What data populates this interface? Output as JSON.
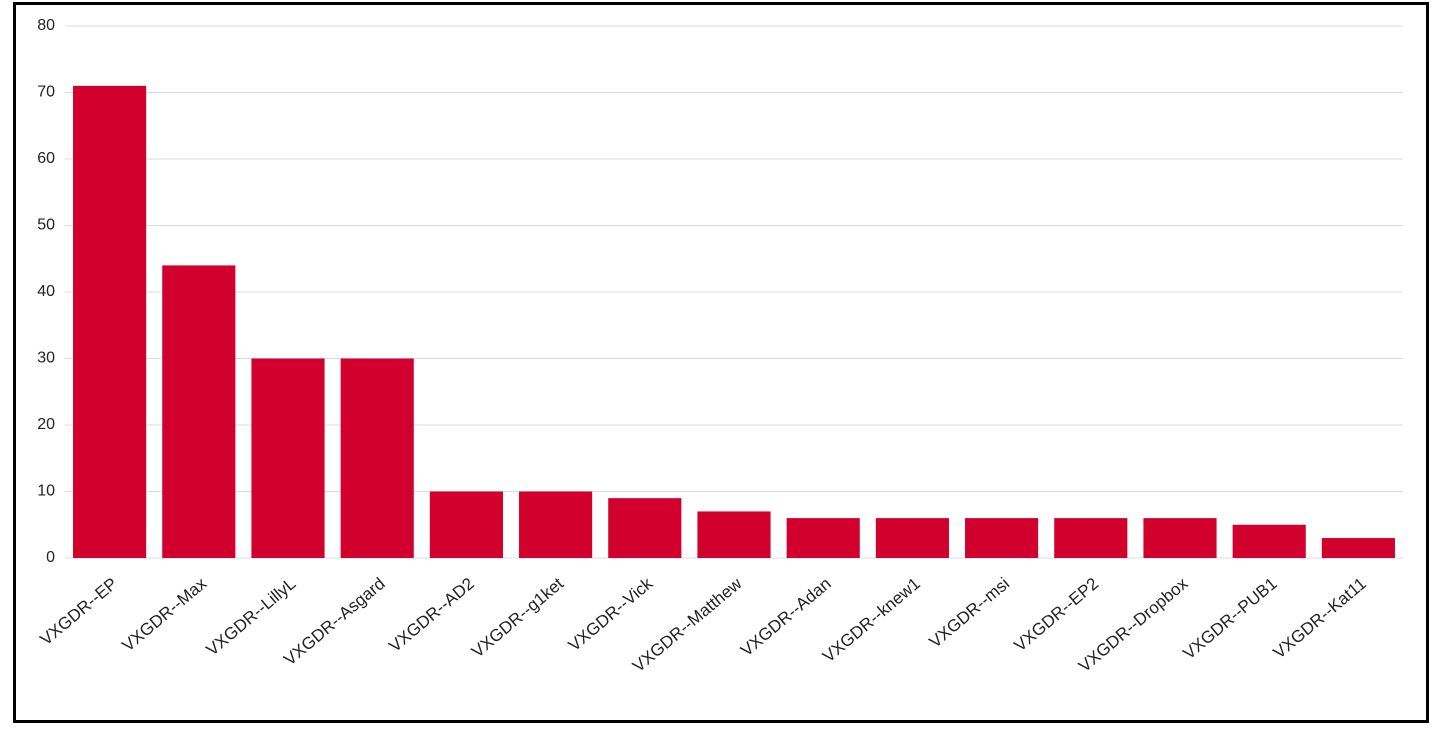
{
  "chart_data": {
    "type": "bar",
    "categories": [
      "VXGDR--EP",
      "VXGDR--Max",
      "VXGDR--LillyL",
      "VXGDR--Asgard",
      "VXGDR--AD2",
      "VXGDR--g1ket",
      "VXGDR--Vick",
      "VXGDR--Matthew",
      "VXGDR--Adan",
      "VXGDR--knew1",
      "VXGDR--msi",
      "VXGDR--EP2",
      "VXGDR--Dropbox",
      "VXGDR--PUB1",
      "VXGDR--Kat11"
    ],
    "values": [
      71,
      44,
      30,
      30,
      10,
      10,
      9,
      7,
      6,
      6,
      6,
      6,
      6,
      5,
      3
    ],
    "color": "#d2002c",
    "ylim": [
      0,
      80
    ],
    "yticks": [
      0,
      10,
      20,
      30,
      40,
      50,
      60,
      70,
      80
    ],
    "grid": true
  }
}
